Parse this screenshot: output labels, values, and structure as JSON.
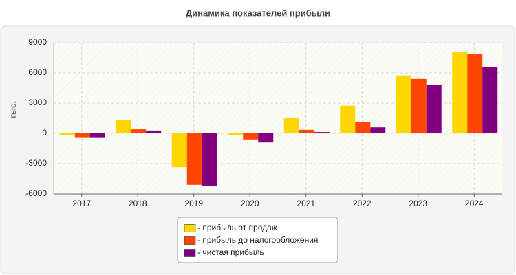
{
  "chart_data": {
    "type": "bar",
    "title": "Динамика показателей прибыли",
    "ylabel": "тыс.",
    "categories": [
      "2017",
      "2018",
      "2019",
      "2020",
      "2021",
      "2022",
      "2023",
      "2024"
    ],
    "series": [
      {
        "name": "- прибыль от продаж",
        "color": "#ffd700",
        "values": [
          -200,
          1360,
          -3350,
          -200,
          1500,
          2750,
          5750,
          8050
        ]
      },
      {
        "name": "- прибыль до налогообложения",
        "color": "#ff4500",
        "values": [
          -450,
          400,
          -5100,
          -600,
          350,
          1100,
          5400,
          7900
        ]
      },
      {
        "name": "- чистая прибыль",
        "color": "#800080",
        "values": [
          -450,
          280,
          -5250,
          -900,
          130,
          600,
          4800,
          6550
        ]
      }
    ],
    "ylim": [
      -6000,
      9000
    ],
    "yticks": [
      -6000,
      -3000,
      0,
      3000,
      6000,
      9000
    ],
    "grid": true
  }
}
